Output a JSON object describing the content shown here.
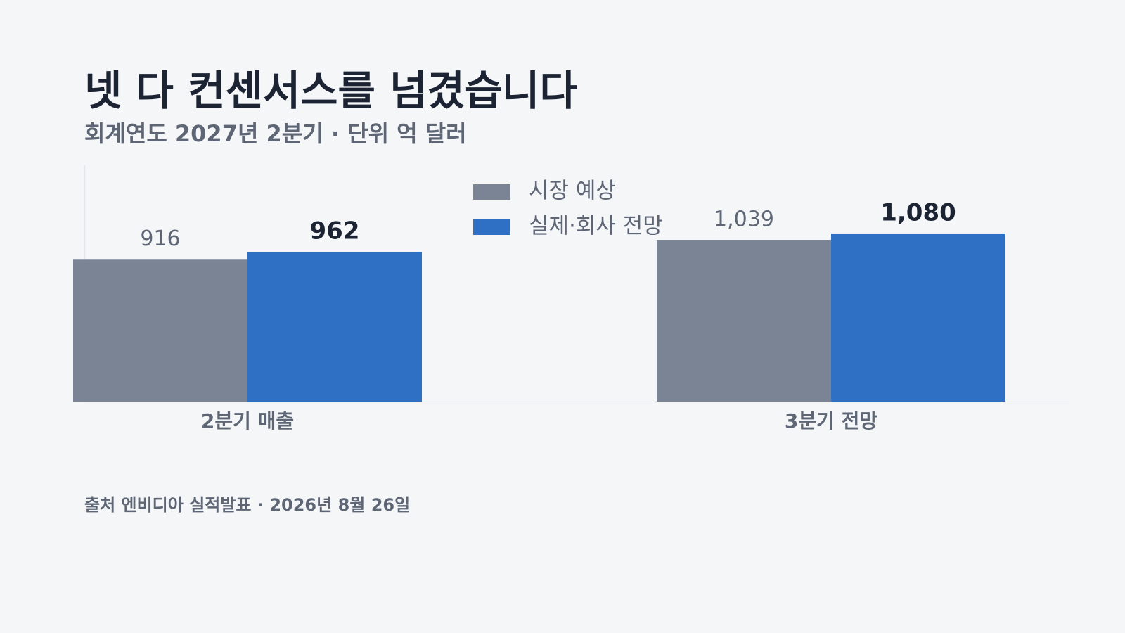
{
  "chart_data": {
    "type": "bar",
    "title": "넷 다 컨센서스를 넘겼습니다",
    "subtitle": "회계연도 2027년 2분기 · 단위 억 달러",
    "source": "출처 엔비디아 실적발표 · 2026년 8월 26일",
    "categories": [
      "2분기 매출",
      "3분기 전망"
    ],
    "series": [
      {
        "name": "시장 예상",
        "color": "#7b8494",
        "values": [
          916,
          1039
        ],
        "value_labels": [
          "916",
          "1,039"
        ]
      },
      {
        "name": "실제·회사 전망",
        "color": "#2f6fc4",
        "values": [
          962,
          1080
        ],
        "value_labels": [
          "962",
          "1,080"
        ]
      }
    ],
    "ylim": [
      0,
      1500
    ],
    "legend": "top-center"
  }
}
